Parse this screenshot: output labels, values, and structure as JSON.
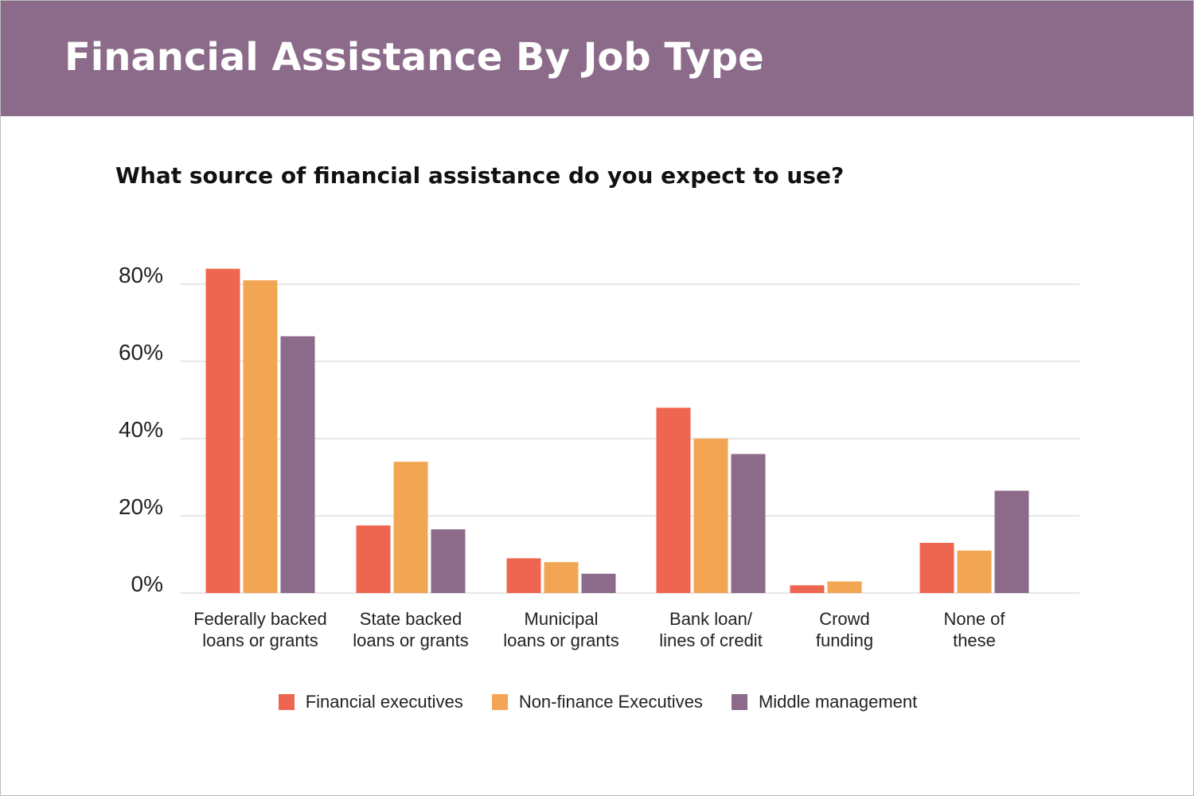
{
  "header": {
    "title": "Financial Assistance By Job Type"
  },
  "chart_data": {
    "type": "bar",
    "title": "What source of financial assistance do you expect to use?",
    "xlabel": "",
    "ylabel": "",
    "ylim": [
      0,
      80
    ],
    "yticks": [
      0,
      20,
      40,
      60,
      80
    ],
    "ytick_labels": [
      "0%",
      "20%",
      "40%",
      "60%",
      "80%"
    ],
    "grid": true,
    "legend_position": "bottom",
    "categories": [
      [
        "Federally backed",
        "loans or grants"
      ],
      [
        "State backed",
        "loans or grants"
      ],
      [
        "Municipal",
        "loans or grants"
      ],
      [
        "Bank loan/",
        "lines of credit"
      ],
      [
        "Crowd",
        "funding"
      ],
      [
        "None of",
        "these"
      ]
    ],
    "series": [
      {
        "name": "Financial executives",
        "color": "#ef6650",
        "values": [
          84,
          17.5,
          9,
          48,
          2,
          13
        ]
      },
      {
        "name": "Non-finance Executives",
        "color": "#f2a654",
        "values": [
          81,
          34,
          8,
          40,
          3,
          11
        ]
      },
      {
        "name": "Middle management",
        "color": "#8b6b89",
        "values": [
          66.5,
          16.5,
          5,
          36,
          0,
          26.5
        ]
      }
    ]
  }
}
